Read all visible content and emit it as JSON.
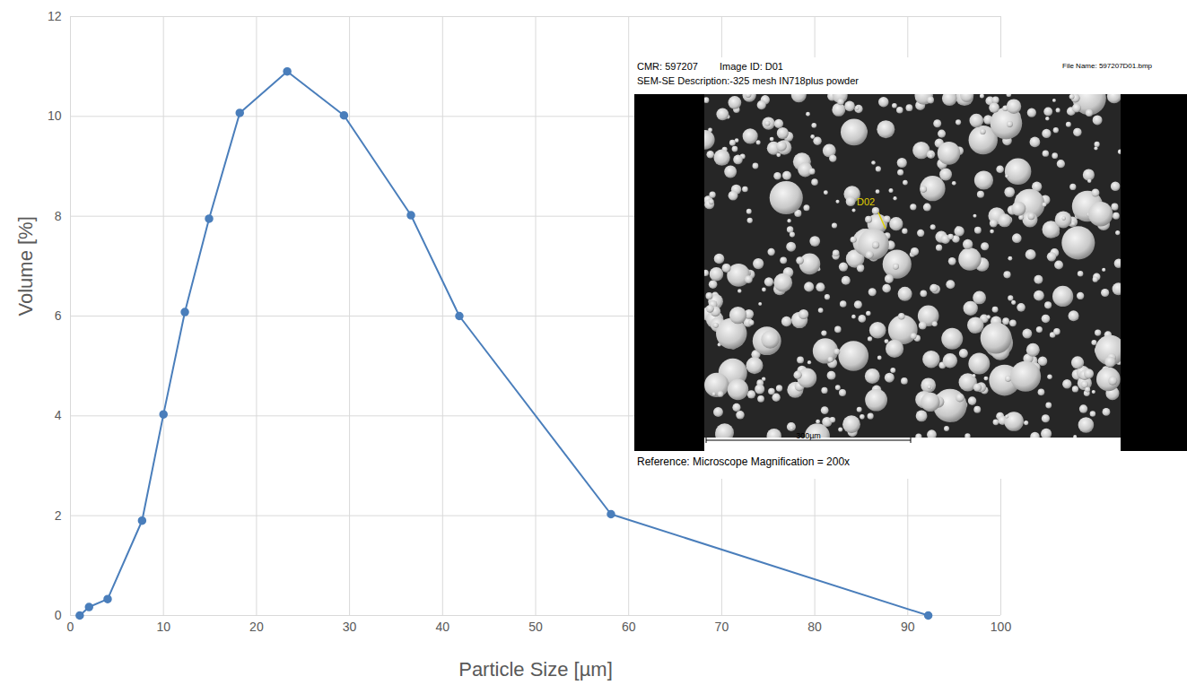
{
  "chart_data": {
    "type": "line",
    "x_label": "Particle Size [µm]",
    "y_label": "Volume [%]",
    "x": [
      1,
      2,
      4,
      7.7,
      10,
      12.3,
      14.9,
      18.2,
      23.3,
      29.4,
      36.6,
      41.8,
      58.1,
      92.2
    ],
    "values": [
      0,
      0.17,
      0.33,
      1.9,
      4.03,
      6.08,
      7.95,
      10.07,
      10.9,
      10.02,
      8.02,
      6.0,
      2.03,
      0
    ],
    "color": "#4a7ebb",
    "marker": "circle",
    "xlim": [
      0,
      100
    ],
    "xticks": [
      0,
      10,
      20,
      30,
      40,
      50,
      60,
      70,
      80,
      90,
      100
    ],
    "ylim": [
      0,
      12
    ],
    "yticks": [
      0,
      2,
      4,
      6,
      8,
      10,
      12
    ],
    "grid": true,
    "inset": {
      "cmr": "CMR: 597207",
      "image_id": "Image ID:  D01",
      "file_name": "File Name: 597207D01.bmp",
      "description": "SEM-SE Description:-325 mesh IN718plus powder",
      "marker_label": "D02",
      "scale_bar": "300µm",
      "reference": "Reference: Microscope Magnification = 200x"
    }
  }
}
